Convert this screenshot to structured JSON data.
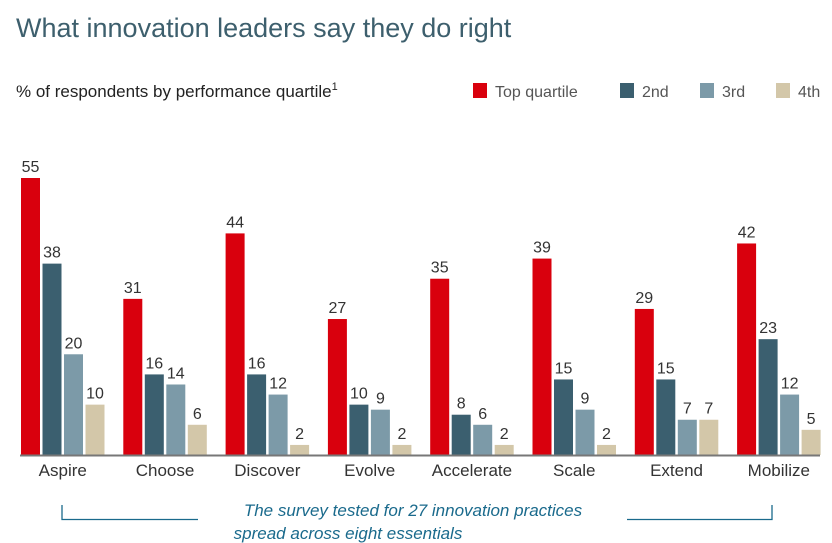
{
  "chart_data": {
    "type": "bar",
    "title": "What innovation leaders say they do right",
    "subtitle": "% of respondents by performance quartile",
    "subtitle_footnote": "1",
    "categories": [
      "Aspire",
      "Choose",
      "Discover",
      "Evolve",
      "Accelerate",
      "Scale",
      "Extend",
      "Mobilize"
    ],
    "series": [
      {
        "name": "Top quartile",
        "color": "#d9000d",
        "values": [
          55,
          31,
          44,
          27,
          35,
          39,
          29,
          42
        ]
      },
      {
        "name": "2nd",
        "color": "#3b5f6f",
        "values": [
          38,
          16,
          16,
          10,
          8,
          15,
          15,
          23
        ]
      },
      {
        "name": "3rd",
        "color": "#7c9aa8",
        "values": [
          20,
          14,
          12,
          9,
          6,
          9,
          7,
          12
        ]
      },
      {
        "name": "4th",
        "color": "#d3c7a9",
        "values": [
          10,
          6,
          2,
          2,
          2,
          2,
          7,
          5
        ]
      }
    ],
    "legend_position": "top-right",
    "grid": false,
    "data_labels": true,
    "annotation": [
      "The survey tested for 27 innovation practices",
      "spread across eight essentials"
    ]
  }
}
